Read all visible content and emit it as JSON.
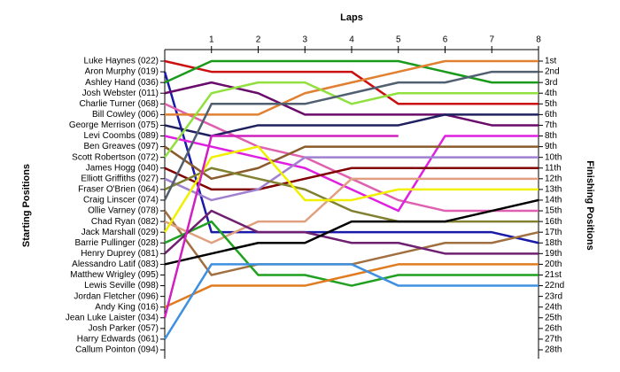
{
  "chart_data": {
    "type": "bump",
    "title": "Laps",
    "ylabel": "Starting Positions",
    "y2label": "Finishing Positions",
    "x": [
      0,
      1,
      2,
      3,
      4,
      5,
      6,
      7,
      8
    ],
    "xlim": [
      0,
      8
    ],
    "xticks": [
      1,
      2,
      3,
      4,
      5,
      6,
      7,
      8
    ],
    "ylim": [
      1,
      28
    ],
    "finishing_labels": [
      "1st",
      "2nd",
      "3rd",
      "4th",
      "5th",
      "6th",
      "7th",
      "8th",
      "9th",
      "10th",
      "11th",
      "12th",
      "13th",
      "14th",
      "15th",
      "16th",
      "17th",
      "18th",
      "19th",
      "20th",
      "21st",
      "22nd",
      "23rd",
      "24th",
      "25th",
      "26th",
      "27th",
      "28th"
    ],
    "series": [
      {
        "name": "Luke Haynes (022)",
        "color": "#cc1010",
        "values": [
          1,
          2,
          2,
          2,
          2,
          5,
          5,
          5,
          5
        ]
      },
      {
        "name": "Aron Murphy (019)",
        "color": "#1a1aa8",
        "values": [
          2,
          17,
          17,
          17,
          17,
          17,
          17,
          17,
          18
        ]
      },
      {
        "name": "Ashley Hand (036)",
        "color": "#1a9a1a",
        "values": [
          3,
          1,
          1,
          1,
          1,
          1,
          2,
          3,
          3
        ]
      },
      {
        "name": "Josh Webster (011)",
        "color": "#6a0a6a",
        "values": [
          4,
          3,
          4,
          6,
          6,
          6,
          6,
          7,
          7
        ]
      },
      {
        "name": "Charlie Turner (068)",
        "color": "#e060b0",
        "values": [
          5,
          7,
          9,
          10,
          12,
          14,
          15,
          15,
          15
        ]
      },
      {
        "name": "Bill Cowley (006)",
        "color": "#e08030",
        "values": [
          6,
          6,
          6,
          4,
          3,
          2,
          1,
          1,
          1
        ]
      },
      {
        "name": "George Merrison (075)",
        "color": "#202060",
        "values": [
          7,
          8,
          7,
          7,
          7,
          7,
          6,
          6,
          6
        ]
      },
      {
        "name": "Levi Coombs (089)",
        "color": "#e020e0",
        "values": [
          8,
          9,
          10,
          11,
          13,
          15,
          8,
          8,
          8
        ]
      },
      {
        "name": "Ben Greaves (097)",
        "color": "#8b5a2b",
        "values": [
          9,
          12,
          11,
          9,
          9,
          9,
          9,
          9,
          9
        ]
      },
      {
        "name": "Scott Robertson (072)",
        "color": "#90e040",
        "values": [
          10,
          4,
          3,
          3,
          5,
          4,
          4,
          4,
          4
        ]
      },
      {
        "name": "James Hogg (040)",
        "color": "#800000",
        "values": [
          11,
          13,
          13,
          12,
          11,
          11,
          11,
          11,
          11
        ]
      },
      {
        "name": "Elliott Griffiths (027)",
        "color": "#a080d0",
        "values": [
          12,
          14,
          13,
          10,
          10,
          10,
          10,
          10,
          10
        ]
      },
      {
        "name": "Fraser O'Brien (064)",
        "color": "#808030",
        "values": [
          13,
          11,
          12,
          13,
          15,
          16,
          16,
          16,
          16
        ]
      },
      {
        "name": "Craig Linscer (074)",
        "color": "#506070",
        "values": [
          14,
          5,
          5,
          5,
          4,
          3,
          3,
          2,
          2
        ]
      },
      {
        "name": "Ollie Varney (078)",
        "color": "#a07040",
        "values": [
          15,
          21,
          20,
          20,
          20,
          19,
          18,
          18,
          17
        ]
      },
      {
        "name": "Chad Ryan (082)",
        "color": "#e0a080",
        "values": [
          16,
          18,
          16,
          16,
          12,
          12,
          12,
          12,
          12
        ]
      },
      {
        "name": "Jack Marshall (029)",
        "color": "#f0f000",
        "values": [
          17,
          10,
          9,
          14,
          14,
          13,
          13,
          13,
          13
        ]
      },
      {
        "name": "Barrie Pullinger (028)",
        "color": "#20a020",
        "values": [
          18,
          16,
          21,
          21,
          22,
          21,
          21,
          21,
          21
        ]
      },
      {
        "name": "Henry Duprey (081)",
        "color": "#702070",
        "values": [
          19,
          15,
          17,
          17,
          18,
          18,
          19,
          19,
          19
        ]
      },
      {
        "name": "Alessandro Latif (083)",
        "color": "#000000",
        "values": [
          20,
          19,
          18,
          18,
          16,
          16,
          16,
          15,
          14
        ]
      },
      {
        "name": "Matthew Wrigley (095)",
        "color": "#606060",
        "values": [
          21,
          null,
          null,
          null,
          null,
          null,
          null,
          null,
          null
        ]
      },
      {
        "name": "Lewis Seville (098)",
        "color": "#909090",
        "values": [
          22,
          null,
          null,
          null,
          null,
          null,
          null,
          null,
          null
        ]
      },
      {
        "name": "Jordan Fletcher (096)",
        "color": "#c04040",
        "values": [
          23,
          null,
          null,
          null,
          null,
          null,
          null,
          null,
          null
        ]
      },
      {
        "name": "Andy King (016)",
        "color": "#e07b20",
        "values": [
          24,
          22,
          22,
          22,
          21,
          20,
          20,
          20,
          20
        ]
      },
      {
        "name": "Jean Luke Laister (034)",
        "color": "#d020c0",
        "values": [
          25,
          8,
          8,
          8,
          8,
          8,
          null,
          null,
          null
        ]
      },
      {
        "name": "Josh Parker (057)",
        "color": "#707070",
        "values": [
          26,
          null,
          null,
          null,
          null,
          null,
          null,
          null,
          null
        ]
      },
      {
        "name": "Harry Edwards (061)",
        "color": "#4090e0",
        "values": [
          27,
          20,
          20,
          20,
          20,
          22,
          22,
          22,
          22
        ]
      },
      {
        "name": "Callum Pointon (094)",
        "color": "#a0a0a0",
        "values": [
          28,
          null,
          null,
          null,
          null,
          null,
          null,
          null,
          null
        ]
      }
    ]
  }
}
